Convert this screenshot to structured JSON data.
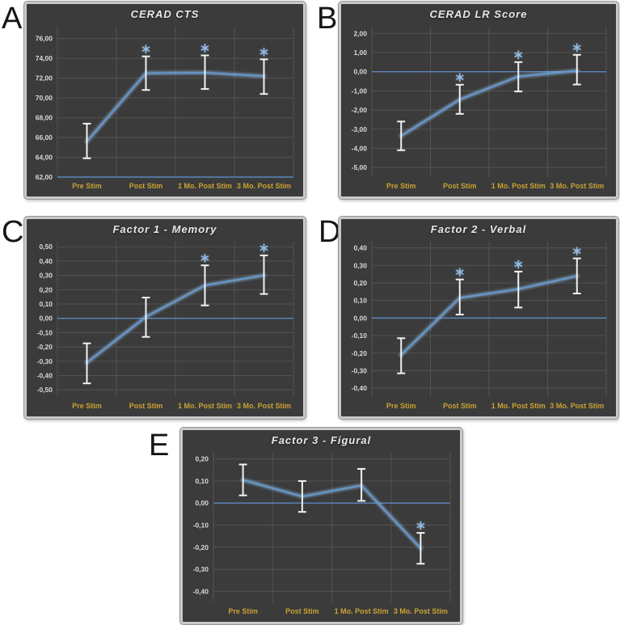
{
  "figure": {
    "categories": [
      "Pre Stim",
      "Post Stim",
      "1 Mo. Post Stim",
      "3 Mo. Post Stim"
    ],
    "sig_marker": "*"
  },
  "colors": {
    "page_bg": "#FFFFFF",
    "panel_bg": "#3B3B3B",
    "frame_border": "#C9C9C9",
    "grid": "#535353",
    "axis_line": "#5B87BE",
    "series_line": "#6397CC",
    "series_glow": "#8FB5DF",
    "error_bar": "#F2F2F2",
    "sig_marker": "#93BCE4",
    "title_text": "#E8E8E8",
    "ytick_text": "#D9D9D9",
    "xtick_text": "#C9A132",
    "panel_letter": "#151515"
  },
  "chart_data": [
    {
      "type": "line",
      "letter": "A",
      "title": "CERAD CTS",
      "categories": [
        "Pre Stim",
        "Post Stim",
        "1 Mo. Post Stim",
        "3 Mo. Post Stim"
      ],
      "ylim": [
        62,
        77.2
      ],
      "axis_cross": 62,
      "ytick_values": [
        76,
        74,
        72,
        70,
        68,
        66,
        64,
        62
      ],
      "ytick_labels": [
        "76,00",
        "74,00",
        "72,00",
        "70,00",
        "68,00",
        "66,00",
        "64,00",
        "62,00"
      ],
      "series": [
        {
          "name": "CERAD CTS",
          "values": [
            65.6,
            72.5,
            72.55,
            72.2
          ],
          "err_low": [
            63.9,
            70.8,
            70.9,
            70.4
          ],
          "err_high": [
            67.4,
            74.2,
            74.3,
            73.9
          ],
          "significant": [
            false,
            true,
            true,
            true
          ]
        }
      ]
    },
    {
      "type": "line",
      "letter": "B",
      "title": "CERAD LR Score",
      "categories": [
        "Pre Stim",
        "Post Stim",
        "1 Mo. Post Stim",
        "3 Mo. Post Stim"
      ],
      "ylim": [
        -5.5,
        2.35
      ],
      "axis_cross": 0,
      "ytick_values": [
        2,
        1,
        0,
        -1,
        -2,
        -3,
        -4,
        -5
      ],
      "ytick_labels": [
        "2,00",
        "1,00",
        "0,00",
        "-1,00",
        "-2,00",
        "-3,00",
        "-4,00",
        "-5,00"
      ],
      "series": [
        {
          "name": "CERAD LR Score",
          "values": [
            -3.35,
            -1.45,
            -0.25,
            0.05
          ],
          "err_low": [
            -4.1,
            -2.2,
            -1.03,
            -0.67
          ],
          "err_high": [
            -2.6,
            -0.68,
            0.5,
            0.88
          ],
          "significant": [
            false,
            true,
            true,
            true
          ]
        }
      ]
    },
    {
      "type": "line",
      "letter": "C",
      "title": "Factor 1 - Memory",
      "categories": [
        "Pre Stim",
        "Post Stim",
        "1 Mo. Post Stim",
        "3 Mo. Post Stim"
      ],
      "ylim": [
        -0.55,
        0.535
      ],
      "axis_cross": 0,
      "ytick_values": [
        0.5,
        0.4,
        0.3,
        0.2,
        0.1,
        0,
        -0.1,
        -0.2,
        -0.3,
        -0.4,
        -0.5
      ],
      "ytick_labels": [
        "0,50",
        "0,40",
        "0,30",
        "0,20",
        "0,10",
        "0,00",
        "-0,10",
        "-0,20",
        "-0,30",
        "-0,40",
        "-0,50"
      ],
      "series": [
        {
          "name": "Factor 1 - Memory",
          "values": [
            -0.31,
            0.01,
            0.23,
            0.3
          ],
          "err_low": [
            -0.455,
            -0.13,
            0.09,
            0.17
          ],
          "err_high": [
            -0.175,
            0.145,
            0.37,
            0.44
          ],
          "significant": [
            false,
            false,
            true,
            true
          ]
        }
      ]
    },
    {
      "type": "line",
      "letter": "D",
      "title": "Factor 2 - Verbal",
      "categories": [
        "Pre Stim",
        "Post Stim",
        "1 Mo. Post Stim",
        "3 Mo. Post Stim"
      ],
      "ylim": [
        -0.45,
        0.435
      ],
      "axis_cross": 0,
      "ytick_values": [
        0.4,
        0.3,
        0.2,
        0.1,
        0,
        -0.1,
        -0.2,
        -0.3,
        -0.4
      ],
      "ytick_labels": [
        "0,40",
        "0,30",
        "0,20",
        "0,10",
        "0,00",
        "-0,10",
        "-0,20",
        "-0,30",
        "-0,40"
      ],
      "series": [
        {
          "name": "Factor 2 - Verbal",
          "values": [
            -0.21,
            0.115,
            0.165,
            0.24
          ],
          "err_low": [
            -0.315,
            0.02,
            0.06,
            0.14
          ],
          "err_high": [
            -0.115,
            0.22,
            0.265,
            0.34
          ],
          "significant": [
            false,
            true,
            true,
            true
          ]
        }
      ]
    },
    {
      "type": "line",
      "letter": "E",
      "title": "Factor 3 - Figural",
      "categories": [
        "Pre Stim",
        "Post Stim",
        "1 Mo. Post Stim",
        "3 Mo. Post Stim"
      ],
      "ylim": [
        -0.45,
        0.228
      ],
      "axis_cross": 0,
      "ytick_values": [
        0.2,
        0.1,
        0,
        -0.1,
        -0.2,
        -0.3,
        -0.4
      ],
      "ytick_labels": [
        "0,20",
        "0,10",
        "0,00",
        "-0,10",
        "-0,20",
        "-0,30",
        "-0,40"
      ],
      "series": [
        {
          "name": "Factor 3 - Figural",
          "values": [
            0.105,
            0.03,
            0.08,
            -0.205
          ],
          "err_low": [
            0.035,
            -0.04,
            0.01,
            -0.275
          ],
          "err_high": [
            0.175,
            0.1,
            0.155,
            -0.135
          ],
          "significant": [
            false,
            false,
            false,
            true
          ]
        }
      ]
    }
  ]
}
